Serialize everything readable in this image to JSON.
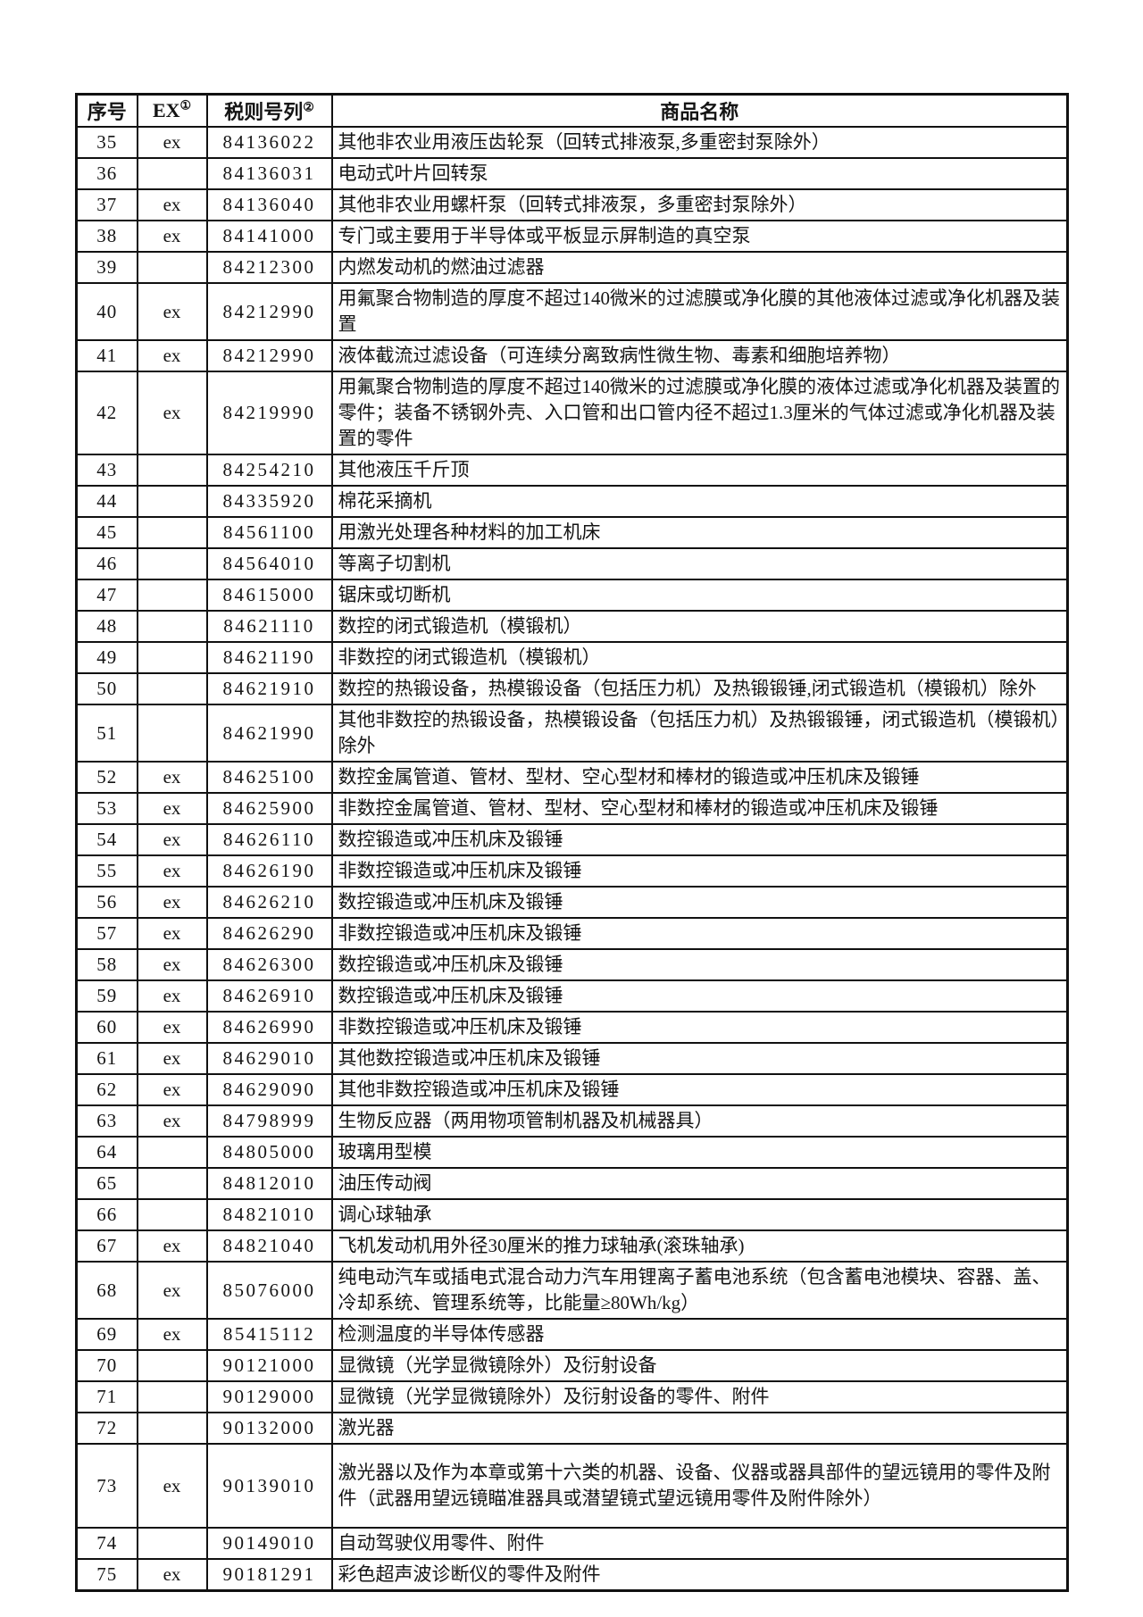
{
  "page": {
    "background_color": "#ffffff",
    "border_color": "#111111",
    "text_color": "#141414"
  },
  "table": {
    "headers": {
      "seq": "序号",
      "ex": "EX",
      "ex_note": "①",
      "code": "税则号列",
      "code_note": "②",
      "name": "商品名称"
    },
    "rows": [
      {
        "no": "35",
        "ex": "ex",
        "code": "84136022",
        "name": "其他非农业用液压齿轮泵（回转式排液泵,多重密封泵除外）"
      },
      {
        "no": "36",
        "ex": "",
        "code": "84136031",
        "name": "电动式叶片回转泵"
      },
      {
        "no": "37",
        "ex": "ex",
        "code": "84136040",
        "name": "其他非农业用螺杆泵（回转式排液泵，多重密封泵除外）"
      },
      {
        "no": "38",
        "ex": "ex",
        "code": "84141000",
        "name": "专门或主要用于半导体或平板显示屏制造的真空泵"
      },
      {
        "no": "39",
        "ex": "",
        "code": "84212300",
        "name": "内燃发动机的燃油过滤器"
      },
      {
        "no": "40",
        "ex": "ex",
        "code": "84212990",
        "name": "用氟聚合物制造的厚度不超过140微米的过滤膜或净化膜的其他液体过滤或净化机器及装置"
      },
      {
        "no": "41",
        "ex": "ex",
        "code": "84212990",
        "name": "液体截流过滤设备（可连续分离致病性微生物、毒素和细胞培养物）"
      },
      {
        "no": "42",
        "ex": "ex",
        "code": "84219990",
        "name": "用氟聚合物制造的厚度不超过140微米的过滤膜或净化膜的液体过滤或净化机器及装置的零件；装备不锈钢外壳、入口管和出口管内径不超过1.3厘米的气体过滤或净化机器及装置的零件"
      },
      {
        "no": "43",
        "ex": "",
        "code": "84254210",
        "name": "其他液压千斤顶"
      },
      {
        "no": "44",
        "ex": "",
        "code": "84335920",
        "name": "棉花采摘机"
      },
      {
        "no": "45",
        "ex": "",
        "code": "84561100",
        "name": "用激光处理各种材料的加工机床"
      },
      {
        "no": "46",
        "ex": "",
        "code": "84564010",
        "name": "等离子切割机"
      },
      {
        "no": "47",
        "ex": "",
        "code": "84615000",
        "name": "锯床或切断机"
      },
      {
        "no": "48",
        "ex": "",
        "code": "84621110",
        "name": "数控的闭式锻造机（模锻机）"
      },
      {
        "no": "49",
        "ex": "",
        "code": "84621190",
        "name": "非数控的闭式锻造机（模锻机）"
      },
      {
        "no": "50",
        "ex": "",
        "code": "84621910",
        "name": "数控的热锻设备，热模锻设备（包括压力机）及热锻锻锤,闭式锻造机（模锻机）除外"
      },
      {
        "no": "51",
        "ex": "",
        "code": "84621990",
        "name": "其他非数控的热锻设备，热模锻设备（包括压力机）及热锻锻锤，闭式锻造机（模锻机）除外"
      },
      {
        "no": "52",
        "ex": "ex",
        "code": "84625100",
        "name": "数控金属管道、管材、型材、空心型材和棒材的锻造或冲压机床及锻锤"
      },
      {
        "no": "53",
        "ex": "ex",
        "code": "84625900",
        "name": "非数控金属管道、管材、型材、空心型材和棒材的锻造或冲压机床及锻锤"
      },
      {
        "no": "54",
        "ex": "ex",
        "code": "84626110",
        "name": "数控锻造或冲压机床及锻锤"
      },
      {
        "no": "55",
        "ex": "ex",
        "code": "84626190",
        "name": "非数控锻造或冲压机床及锻锤"
      },
      {
        "no": "56",
        "ex": "ex",
        "code": "84626210",
        "name": "数控锻造或冲压机床及锻锤"
      },
      {
        "no": "57",
        "ex": "ex",
        "code": "84626290",
        "name": "非数控锻造或冲压机床及锻锤"
      },
      {
        "no": "58",
        "ex": "ex",
        "code": "84626300",
        "name": "数控锻造或冲压机床及锻锤"
      },
      {
        "no": "59",
        "ex": "ex",
        "code": "84626910",
        "name": "数控锻造或冲压机床及锻锤"
      },
      {
        "no": "60",
        "ex": "ex",
        "code": "84626990",
        "name": "非数控锻造或冲压机床及锻锤"
      },
      {
        "no": "61",
        "ex": "ex",
        "code": "84629010",
        "name": "其他数控锻造或冲压机床及锻锤"
      },
      {
        "no": "62",
        "ex": "ex",
        "code": "84629090",
        "name": "其他非数控锻造或冲压机床及锻锤"
      },
      {
        "no": "63",
        "ex": "ex",
        "code": "84798999",
        "name": "生物反应器（两用物项管制机器及机械器具）"
      },
      {
        "no": "64",
        "ex": "",
        "code": "84805000",
        "name": "玻璃用型模"
      },
      {
        "no": "65",
        "ex": "",
        "code": "84812010",
        "name": "油压传动阀"
      },
      {
        "no": "66",
        "ex": "",
        "code": "84821010",
        "name": "调心球轴承"
      },
      {
        "no": "67",
        "ex": "ex",
        "code": "84821040",
        "name": "飞机发动机用外径30厘米的推力球轴承(滚珠轴承)"
      },
      {
        "no": "68",
        "ex": "ex",
        "code": "85076000",
        "name": "纯电动汽车或插电式混合动力汽车用锂离子蓄电池系统（包含蓄电池模块、容器、盖、冷却系统、管理系统等，比能量≥80Wh/kg）"
      },
      {
        "no": "69",
        "ex": "ex",
        "code": "85415112",
        "name": "检测温度的半导体传感器"
      },
      {
        "no": "70",
        "ex": "",
        "code": "90121000",
        "name": "显微镜（光学显微镜除外）及衍射设备"
      },
      {
        "no": "71",
        "ex": "",
        "code": "90129000",
        "name": "显微镜（光学显微镜除外）及衍射设备的零件、附件"
      },
      {
        "no": "72",
        "ex": "",
        "code": "90132000",
        "name": "激光器"
      },
      {
        "no": "73",
        "ex": "ex",
        "code": "90139010",
        "name": "激光器以及作为本章或第十六类的机器、设备、仪器或器具部件的望远镜用的零件及附件（武器用望远镜瞄准器具或潜望镜式望远镜用零件及附件除外）"
      },
      {
        "no": "74",
        "ex": "",
        "code": "90149010",
        "name": "自动驾驶仪用零件、附件"
      },
      {
        "no": "75",
        "ex": "ex",
        "code": "90181291",
        "name": "彩色超声波诊断仪的零件及附件"
      }
    ]
  }
}
